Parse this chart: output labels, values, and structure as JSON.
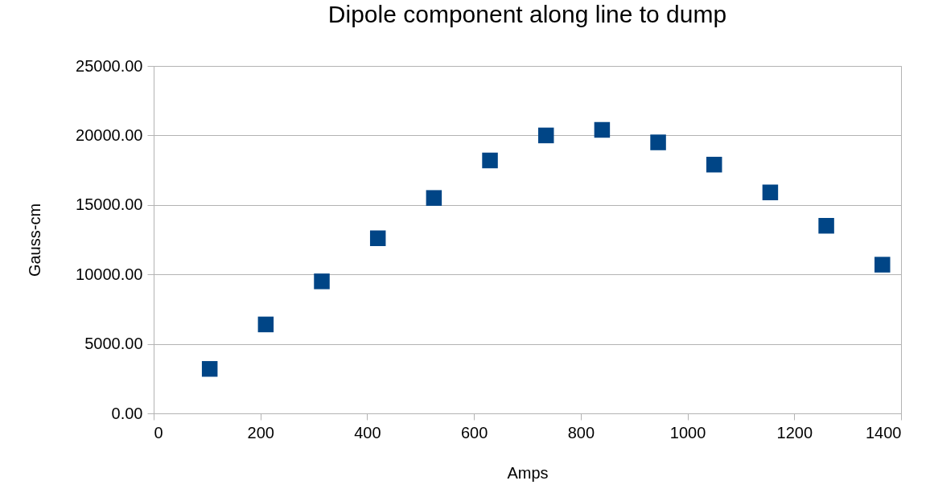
{
  "chart_data": {
    "type": "scatter",
    "title": "Dipole component along line to dump",
    "xlabel": "Amps",
    "ylabel": "Gauss-cm",
    "x": [
      105,
      210,
      315,
      420,
      525,
      630,
      735,
      840,
      945,
      1050,
      1155,
      1260,
      1365
    ],
    "series": [
      {
        "color": "#004586",
        "values": [
          3200,
          6400,
          9500,
          12600,
          15500,
          18200,
          20000,
          20400,
          19500,
          17900,
          15900,
          13500,
          10700
        ]
      }
    ],
    "xlim": [
      0,
      1400
    ],
    "xticks": [
      0,
      200,
      400,
      600,
      800,
      1000,
      1200,
      1400
    ],
    "ylim": [
      0,
      25000
    ],
    "yticks": [
      {
        "value": 0,
        "label": "0.00"
      },
      {
        "value": 5000,
        "label": "5000.00"
      },
      {
        "value": 10000,
        "label": "10000.00"
      },
      {
        "value": 15000,
        "label": "15000.00"
      },
      {
        "value": 20000,
        "label": "20000.00"
      },
      {
        "value": 25000,
        "label": "25000.00"
      }
    ],
    "grid": "y",
    "marker": "square",
    "legend": false
  }
}
